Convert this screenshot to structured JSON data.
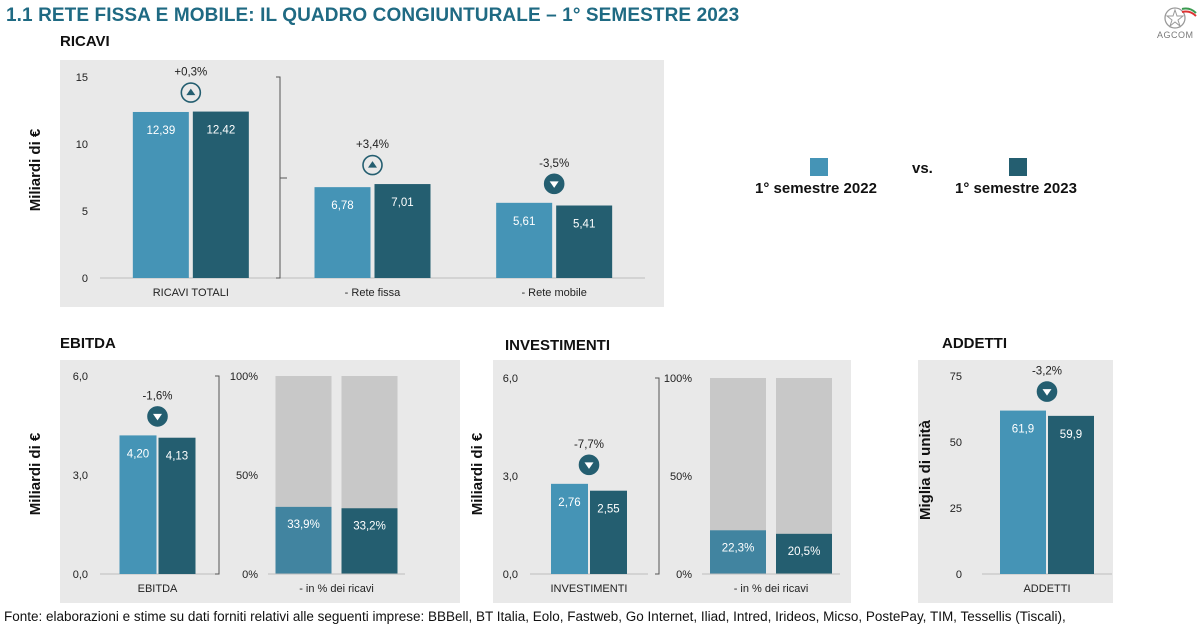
{
  "header": {
    "title": "1.1 RETE FISSA E MOBILE: IL QUADRO CONGIUNTURALE – 1° SEMESTRE 2023",
    "logo_text": "AGCOM"
  },
  "legend": {
    "item1": "1° semestre 2022",
    "item2": "1° semestre 2023",
    "vs": "vs.",
    "color1": "#4594b6",
    "color2": "#245e70"
  },
  "colors": {
    "share_background": "#c8c8c8",
    "share_light": "#4184a0",
    "share_dark": "#245e70",
    "change_icon": "#245e70"
  },
  "sections": {
    "ricavi": "RICAVI",
    "ebitda": "EBITDA",
    "investimenti": "INVESTIMENTI",
    "addetti": "ADDETTI"
  },
  "footer": {
    "text": "Fonte: elaborazioni e stime su dati forniti relativi alle seguenti imprese: BBBell, BT Italia, Eolo, Fastweb, Go Internet, Iliad, Intred, Irideos, Micso, PostePay, TIM, Tessellis (Tiscali),"
  },
  "chart_data": [
    {
      "id": "ricavi",
      "type": "bar",
      "ylabel": "Miliardi di €",
      "ylim": [
        0,
        15
      ],
      "yticks": [
        0,
        5,
        10,
        15
      ],
      "ytick_labels": [
        "0",
        "5",
        "10",
        "15"
      ],
      "categories": [
        "RICAVI TOTALI",
        "- Rete fissa",
        "- Rete mobile"
      ],
      "series": [
        {
          "name": "1° semestre 2022",
          "values": [
            12.39,
            6.78,
            5.61
          ],
          "labels": [
            "12,39",
            "6,78",
            "5,61"
          ]
        },
        {
          "name": "1° semestre 2023",
          "values": [
            12.42,
            7.01,
            5.41
          ],
          "labels": [
            "12,42",
            "7,01",
            "5,41"
          ]
        }
      ],
      "annotations": [
        {
          "category": "RICAVI TOTALI",
          "text": "+0,3%",
          "direction": "up"
        },
        {
          "category": "- Rete fissa",
          "text": "+3,4%",
          "direction": "up"
        },
        {
          "category": "- Rete mobile",
          "text": "-3,5%",
          "direction": "down"
        }
      ]
    },
    {
      "id": "ebitda",
      "type": "bar",
      "ylabel": "Miliardi di €",
      "ylim": [
        0,
        6
      ],
      "yticks": [
        0,
        3,
        6
      ],
      "ytick_labels": [
        "0,0",
        "3,0",
        "6,0"
      ],
      "categories": [
        "EBITDA"
      ],
      "series": [
        {
          "name": "1° semestre 2022",
          "values": [
            4.2
          ],
          "labels": [
            "4,20"
          ]
        },
        {
          "name": "1° semestre 2023",
          "values": [
            4.13
          ],
          "labels": [
            "4,13"
          ]
        }
      ],
      "annotations": [
        {
          "category": "EBITDA",
          "text": "-1,6%",
          "direction": "down"
        }
      ]
    },
    {
      "id": "ebitda_share",
      "type": "bar",
      "ylim": [
        0,
        100
      ],
      "yticks": [
        0,
        50,
        100
      ],
      "ytick_labels": [
        "0%",
        "50%",
        "100%"
      ],
      "categories": [
        "- in % dei ricavi"
      ],
      "series": [
        {
          "name": "1° semestre 2022",
          "values": [
            33.9
          ],
          "labels": [
            "33,9%"
          ]
        },
        {
          "name": "1° semestre 2023",
          "values": [
            33.2
          ],
          "labels": [
            "33,2%"
          ]
        }
      ]
    },
    {
      "id": "investimenti",
      "type": "bar",
      "ylabel": "Miliardi di €",
      "ylim": [
        0,
        6
      ],
      "yticks": [
        0,
        3,
        6
      ],
      "ytick_labels": [
        "0,0",
        "3,0",
        "6,0"
      ],
      "categories": [
        "INVESTIMENTI"
      ],
      "series": [
        {
          "name": "1° semestre 2022",
          "values": [
            2.76
          ],
          "labels": [
            "2,76"
          ]
        },
        {
          "name": "1° semestre 2023",
          "values": [
            2.55
          ],
          "labels": [
            "2,55"
          ]
        }
      ],
      "annotations": [
        {
          "category": "INVESTIMENTI",
          "text": "-7,7%",
          "direction": "down"
        }
      ]
    },
    {
      "id": "investimenti_share",
      "type": "bar",
      "ylim": [
        0,
        100
      ],
      "yticks": [
        0,
        50,
        100
      ],
      "ytick_labels": [
        "0%",
        "50%",
        "100%"
      ],
      "categories": [
        "- in % dei ricavi"
      ],
      "series": [
        {
          "name": "1° semestre 2022",
          "values": [
            22.3
          ],
          "labels": [
            "22,3%"
          ]
        },
        {
          "name": "1° semestre 2023",
          "values": [
            20.5
          ],
          "labels": [
            "20,5%"
          ]
        }
      ]
    },
    {
      "id": "addetti",
      "type": "bar",
      "ylabel": "Miglia di unità",
      "ylim": [
        0,
        75
      ],
      "yticks": [
        0,
        25,
        50,
        75
      ],
      "ytick_labels": [
        "0",
        "25",
        "50",
        "75"
      ],
      "categories": [
        "ADDETTI"
      ],
      "series": [
        {
          "name": "1° semestre 2022",
          "values": [
            61.9
          ],
          "labels": [
            "61,9"
          ]
        },
        {
          "name": "1° semestre 2023",
          "values": [
            59.9
          ],
          "labels": [
            "59,9"
          ]
        }
      ],
      "annotations": [
        {
          "category": "ADDETTI",
          "text": "-3,2%",
          "direction": "down"
        }
      ]
    }
  ]
}
